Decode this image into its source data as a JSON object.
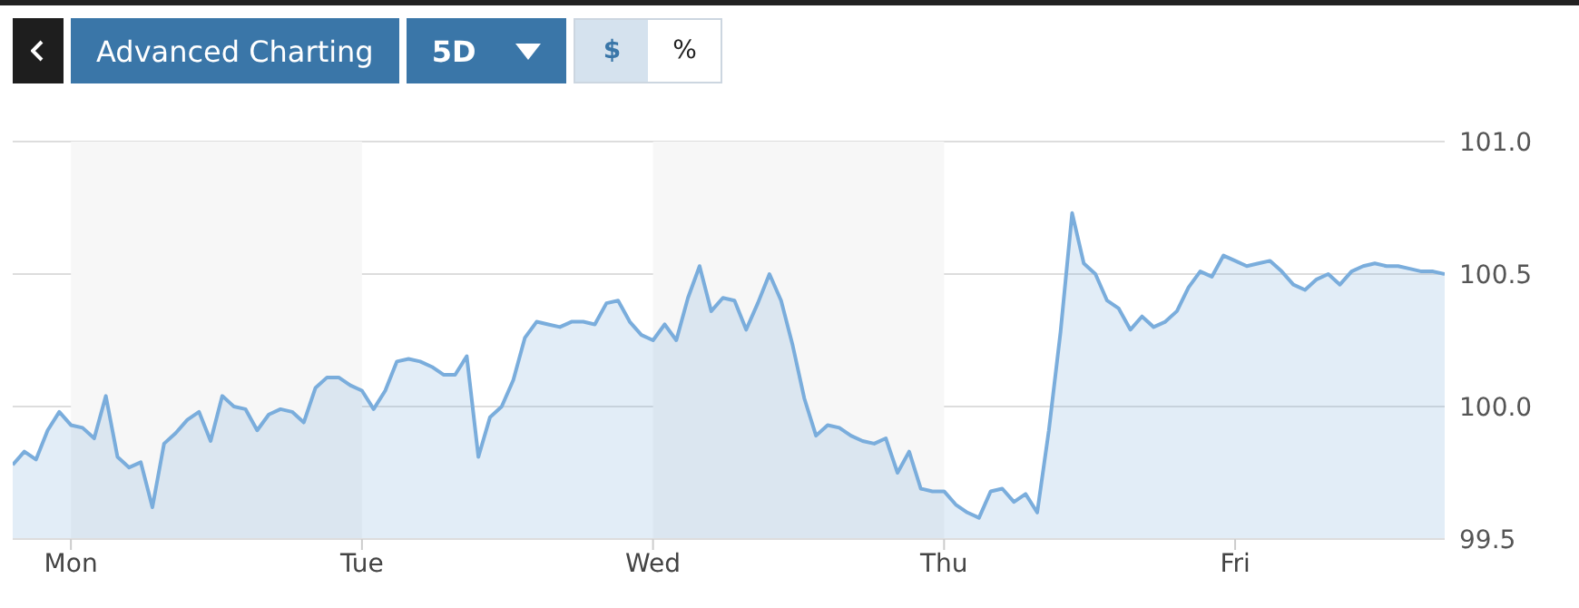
{
  "chart_data": {
    "type": "area",
    "categories": [
      null,
      null,
      null,
      null,
      null,
      "Mon",
      null,
      null,
      null,
      null,
      null,
      null,
      null,
      null,
      null,
      null,
      null,
      null,
      null,
      null,
      null,
      null,
      null,
      null,
      null,
      null,
      null,
      null,
      null,
      null,
      "Tue",
      null,
      null,
      null,
      null,
      null,
      null,
      null,
      null,
      null,
      null,
      null,
      null,
      null,
      null,
      null,
      null,
      null,
      null,
      null,
      null,
      null,
      null,
      null,
      null,
      "Wed",
      null,
      null,
      null,
      null,
      null,
      null,
      null,
      null,
      null,
      null,
      null,
      null,
      null,
      null,
      null,
      null,
      null,
      null,
      null,
      null,
      null,
      null,
      null,
      null,
      "Thu",
      null,
      null,
      null,
      null,
      null,
      null,
      null,
      null,
      null,
      null,
      null,
      null,
      null,
      null,
      null,
      null,
      null,
      null,
      null,
      null,
      null,
      null,
      null,
      null,
      "Fri",
      null,
      null,
      null,
      null,
      null,
      null,
      null,
      null,
      null,
      null,
      null,
      null,
      null,
      null,
      null,
      null,
      null,
      null
    ],
    "series": [
      {
        "color": "#7aaddc",
        "values": [
          99.78,
          99.83,
          99.8,
          99.91,
          99.98,
          99.93,
          99.92,
          99.88,
          100.04,
          99.81,
          99.77,
          99.79,
          99.62,
          99.86,
          99.9,
          99.95,
          99.98,
          99.87,
          100.04,
          100.0,
          99.99,
          99.91,
          99.97,
          99.99,
          99.98,
          99.94,
          100.07,
          100.11,
          100.11,
          100.08,
          100.06,
          99.99,
          100.06,
          100.17,
          100.18,
          100.17,
          100.15,
          100.12,
          100.12,
          100.19,
          99.81,
          99.96,
          100.0,
          100.1,
          100.26,
          100.32,
          100.31,
          100.3,
          100.32,
          100.32,
          100.31,
          100.39,
          100.4,
          100.32,
          100.27,
          100.25,
          100.31,
          100.25,
          100.41,
          100.53,
          100.36,
          100.41,
          100.4,
          100.29,
          100.39,
          100.5,
          100.4,
          100.23,
          100.03,
          99.89,
          99.93,
          99.92,
          99.89,
          99.87,
          99.86,
          99.88,
          99.75,
          99.83,
          99.69,
          99.68,
          99.68,
          99.63,
          99.6,
          99.58,
          99.68,
          99.69,
          99.64,
          99.67,
          99.6,
          99.91,
          100.28,
          100.73,
          100.54,
          100.5,
          100.4,
          100.37,
          100.29,
          100.34,
          100.3,
          100.32,
          100.36,
          100.45,
          100.51,
          100.49,
          100.57,
          100.55,
          100.53,
          100.54,
          100.55,
          100.51,
          100.46,
          100.44,
          100.48,
          100.5,
          100.46,
          100.51,
          100.53,
          100.54,
          100.53,
          100.53,
          100.52,
          100.51,
          100.51,
          100.5
        ]
      }
    ],
    "ylim": [
      99.5,
      101.0
    ],
    "yticks": [
      99.5,
      {
        "value": 100,
        "label": "100.0"
      },
      100.5,
      {
        "value": 101,
        "label": "101.0"
      }
    ],
    "grid": "y",
    "bands": [
      {
        "axis": "x",
        "from": "Mon",
        "to": "Tue",
        "color": "#f7f7f7"
      },
      {
        "axis": "x",
        "from": "Wed",
        "to": "Thu",
        "color": "#f7f7f7"
      }
    ],
    "annotations": [
      "Advanced Charting",
      "5D",
      "$",
      "%"
    ]
  }
}
